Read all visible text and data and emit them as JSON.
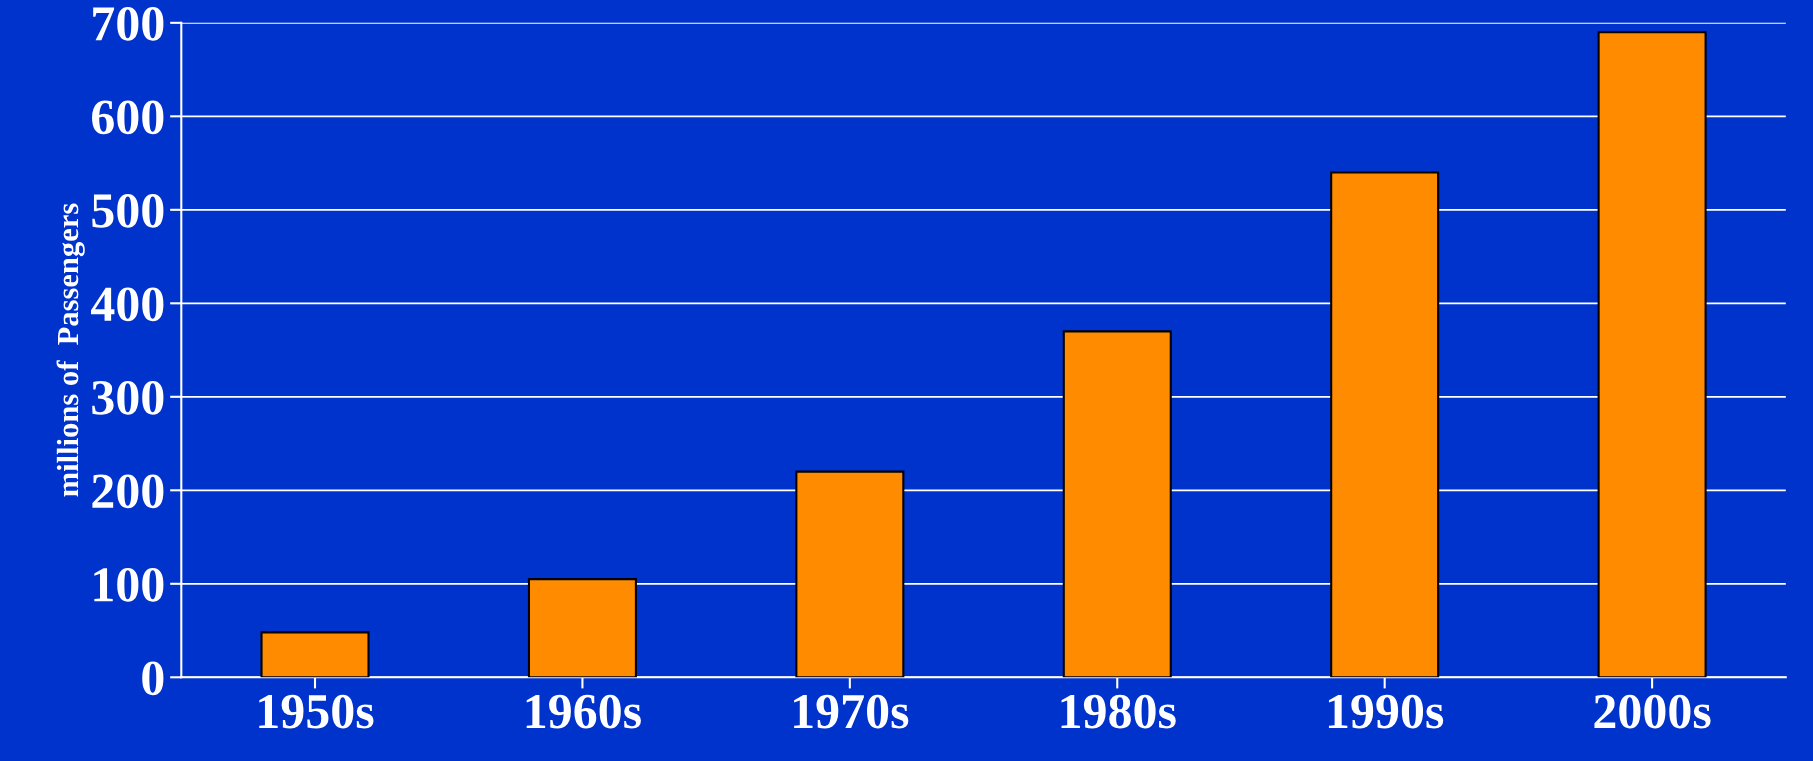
{
  "chart_data": {
    "type": "bar",
    "ylabel": "millions of  Passengers",
    "categories": [
      "1950s",
      "1960s",
      "1970s",
      "1980s",
      "1990s",
      "2000s"
    ],
    "values": [
      48,
      105,
      220,
      370,
      540,
      690
    ],
    "color": "#ff8c00",
    "ylim": [
      0,
      700
    ],
    "yticks": [
      0,
      100,
      200,
      300,
      400,
      500,
      600,
      700
    ],
    "grid": "y"
  }
}
